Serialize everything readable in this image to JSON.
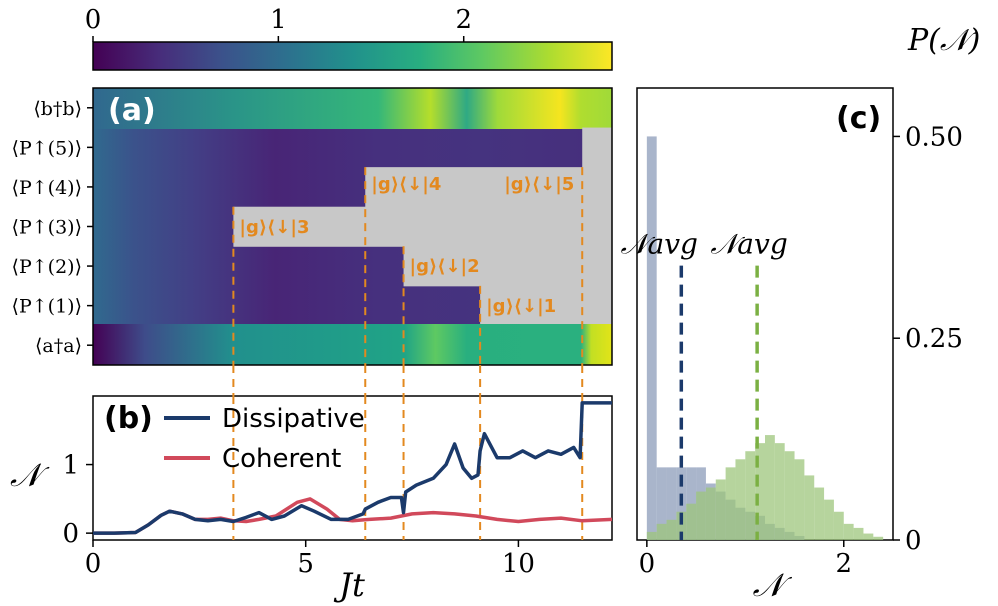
{
  "colors": {
    "dissipative": "#1b3a6b",
    "coherent": "#d1495b",
    "orange": "#e3891f",
    "gray": "#c8c8c8",
    "hist_blue": "#8c9cb9",
    "hist_green": "#9dc67c",
    "avg_blue": "#1b3a6b",
    "avg_green": "#7bb043"
  },
  "chart_data": [
    {
      "type": "heatmap",
      "panel_label": "(a)",
      "colorbar": {
        "ticks": [
          "0",
          "1",
          "2"
        ],
        "range": [
          0,
          2.8
        ],
        "colormap": "viridis"
      },
      "rows": [
        "⟨b†b⟩",
        "⟨P↑(5)⟩",
        "⟨P↑(4)⟩",
        "⟨P↑(3)⟩",
        "⟨P↑(2)⟩",
        "⟨P↑(1)⟩",
        "⟨a†a⟩"
      ],
      "x_range": [
        0,
        12.2
      ],
      "jump_times": [
        3.3,
        6.4,
        7.3,
        9.1,
        11.5
      ],
      "jump_labels": [
        "|g⟩⟨↓|3",
        "|g⟩⟨↓|4",
        "|g⟩⟨↓|2",
        "|g⟩⟨↓|1",
        "|g⟩⟨↓|5"
      ]
    },
    {
      "type": "line",
      "panel_label": "(b)",
      "ylabel": "𝒩",
      "xlabel": "Jt",
      "xlim": [
        0,
        12.2
      ],
      "ylim": [
        -0.1,
        2.0
      ],
      "x_ticks": [
        "0",
        "5",
        "10"
      ],
      "y_ticks": [
        "0",
        "1"
      ],
      "series": [
        {
          "name": "Dissipative",
          "points": [
            [
              0,
              0
            ],
            [
              0.5,
              0
            ],
            [
              1,
              0.01
            ],
            [
              1.3,
              0.12
            ],
            [
              1.6,
              0.26
            ],
            [
              1.8,
              0.32
            ],
            [
              2.1,
              0.28
            ],
            [
              2.4,
              0.2
            ],
            [
              2.7,
              0.18
            ],
            [
              3.0,
              0.2
            ],
            [
              3.3,
              0.17
            ],
            [
              3.6,
              0.23
            ],
            [
              3.9,
              0.3
            ],
            [
              4.2,
              0.2
            ],
            [
              4.5,
              0.25
            ],
            [
              4.9,
              0.4
            ],
            [
              5.2,
              0.32
            ],
            [
              5.6,
              0.2
            ],
            [
              6.0,
              0.2
            ],
            [
              6.35,
              0.28
            ],
            [
              6.4,
              0.35
            ],
            [
              6.7,
              0.45
            ],
            [
              7.0,
              0.52
            ],
            [
              7.25,
              0.52
            ],
            [
              7.3,
              0.3
            ],
            [
              7.35,
              0.6
            ],
            [
              7.6,
              0.7
            ],
            [
              8.0,
              0.8
            ],
            [
              8.3,
              1.0
            ],
            [
              8.5,
              1.3
            ],
            [
              8.7,
              0.95
            ],
            [
              8.9,
              0.8
            ],
            [
              9.05,
              0.85
            ],
            [
              9.1,
              1.2
            ],
            [
              9.2,
              1.45
            ],
            [
              9.5,
              1.1
            ],
            [
              9.8,
              1.1
            ],
            [
              10.1,
              1.2
            ],
            [
              10.4,
              1.1
            ],
            [
              10.7,
              1.2
            ],
            [
              11.0,
              1.15
            ],
            [
              11.3,
              1.25
            ],
            [
              11.45,
              1.1
            ],
            [
              11.5,
              1.9
            ],
            [
              12.2,
              1.9
            ]
          ]
        },
        {
          "name": "Coherent",
          "points": [
            [
              0,
              0
            ],
            [
              0.5,
              0
            ],
            [
              1,
              0.01
            ],
            [
              1.3,
              0.12
            ],
            [
              1.6,
              0.26
            ],
            [
              1.8,
              0.32
            ],
            [
              2.1,
              0.28
            ],
            [
              2.4,
              0.2
            ],
            [
              2.7,
              0.2
            ],
            [
              3.0,
              0.22
            ],
            [
              3.3,
              0.18
            ],
            [
              3.6,
              0.17
            ],
            [
              3.9,
              0.2
            ],
            [
              4.3,
              0.25
            ],
            [
              4.8,
              0.45
            ],
            [
              5.1,
              0.5
            ],
            [
              5.5,
              0.35
            ],
            [
              5.8,
              0.2
            ],
            [
              6.1,
              0.18
            ],
            [
              6.5,
              0.2
            ],
            [
              7.0,
              0.22
            ],
            [
              7.5,
              0.28
            ],
            [
              8.0,
              0.3
            ],
            [
              8.5,
              0.28
            ],
            [
              9.0,
              0.25
            ],
            [
              9.5,
              0.2
            ],
            [
              10.0,
              0.17
            ],
            [
              10.5,
              0.2
            ],
            [
              11.0,
              0.22
            ],
            [
              11.5,
              0.18
            ],
            [
              12.2,
              0.2
            ]
          ]
        }
      ]
    },
    {
      "type": "bar",
      "panel_label": "(c)",
      "ylabel": "P(𝒩)",
      "xlabel": "𝒩",
      "xlim": [
        -0.1,
        2.5
      ],
      "ylim": [
        0,
        0.56
      ],
      "x_ticks": [
        "0",
        "2"
      ],
      "y_ticks": [
        "0",
        "0.25",
        "0.50"
      ],
      "bin_width": 0.1,
      "series": [
        {
          "name": "Dissipative",
          "bin_starts": [
            0.0,
            0.1,
            0.2,
            0.3,
            0.4,
            0.5,
            0.6,
            0.7,
            0.8,
            0.9,
            1.0,
            1.1,
            1.2,
            1.3,
            1.4,
            1.5
          ],
          "values": [
            0.5,
            0.09,
            0.09,
            0.09,
            0.09,
            0.09,
            0.07,
            0.06,
            0.05,
            0.04,
            0.035,
            0.03,
            0.02,
            0.015,
            0.01,
            0.005
          ]
        },
        {
          "name": "Coherent",
          "bin_starts": [
            0.0,
            0.1,
            0.2,
            0.3,
            0.4,
            0.5,
            0.6,
            0.7,
            0.8,
            0.9,
            1.0,
            1.1,
            1.2,
            1.3,
            1.4,
            1.5,
            1.6,
            1.7,
            1.8,
            1.9,
            2.0,
            2.1,
            2.2,
            2.3
          ],
          "values": [
            0.01,
            0.02,
            0.025,
            0.035,
            0.045,
            0.06,
            0.065,
            0.075,
            0.09,
            0.1,
            0.11,
            0.12,
            0.13,
            0.12,
            0.11,
            0.1,
            0.08,
            0.065,
            0.05,
            0.035,
            0.02,
            0.015,
            0.008,
            0.004
          ]
        }
      ],
      "averages": [
        {
          "label": "𝒩avg",
          "x": 0.35,
          "top": 0.34
        },
        {
          "label": "𝒩avg",
          "x": 1.12,
          "top": 0.34
        }
      ]
    }
  ]
}
